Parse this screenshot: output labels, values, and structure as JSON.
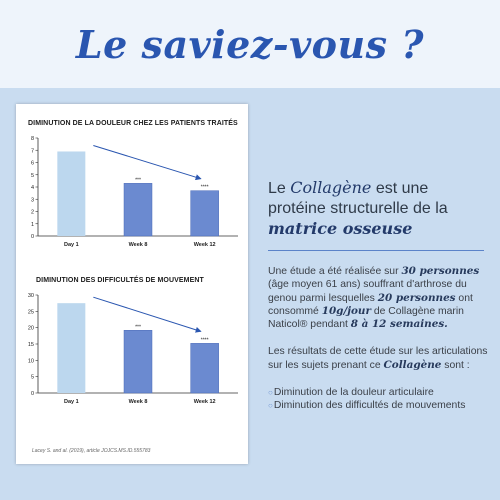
{
  "headline": "Le saviez-vous ?",
  "chart_data": [
    {
      "type": "bar",
      "title": "DIMINUTION DE LA DOULEUR CHEZ LES PATIENTS TRAITÉS",
      "categories": [
        "Day 1",
        "Week 8",
        "Week 12"
      ],
      "values": [
        6.9,
        4.3,
        3.7
      ],
      "significance": [
        "",
        "***",
        "****"
      ],
      "ylim": [
        0,
        8
      ],
      "yticks": [
        0,
        1,
        2,
        3,
        4,
        5,
        6,
        7,
        8
      ],
      "colors": [
        "#bcd7ee",
        "#6b8ad0",
        "#6b8ad0"
      ],
      "trend_arrow": true
    },
    {
      "type": "bar",
      "title": "DIMINUTION DES DIFFICULTÉS DE MOUVEMENT",
      "categories": [
        "Day 1",
        "Week 8",
        "Week 12"
      ],
      "values": [
        27.5,
        19.2,
        15.2
      ],
      "significance": [
        "",
        "***",
        "****"
      ],
      "ylim": [
        0,
        30
      ],
      "yticks": [
        0,
        5,
        10,
        15,
        20,
        25,
        30
      ],
      "colors": [
        "#bcd7ee",
        "#6b8ad0",
        "#6b8ad0"
      ],
      "trend_arrow": true
    }
  ],
  "citation": "Lacey S. and al. (2019), article JOJCS.MS.ID.555783",
  "intro": {
    "a": "Le ",
    "b": "Collagène",
    "c": " est une protéine structurelle de la ",
    "d": "matrice osseuse"
  },
  "study": {
    "t1": "Une étude a été réalisée sur ",
    "t2": "30 personnes",
    "t3": " (âge moyen 61 ans) souffrant d'arthrose du genou parmi lesquelles ",
    "t4": "20 personnes",
    "t5": " ont consommé ",
    "t6": "10g/jour",
    "t7": " de Collagène marin Naticol® pendant ",
    "t8": "8 à 12 semaines."
  },
  "results": {
    "t1": "Les résultats de cette étude sur les articulations sur les sujets prenant ce ",
    "t2": "Collagène",
    "t3": " sont :"
  },
  "bullets": [
    "Diminution de la douleur articulaire",
    "Diminution des difficultés de mouvements"
  ],
  "bullet_mark": "○"
}
